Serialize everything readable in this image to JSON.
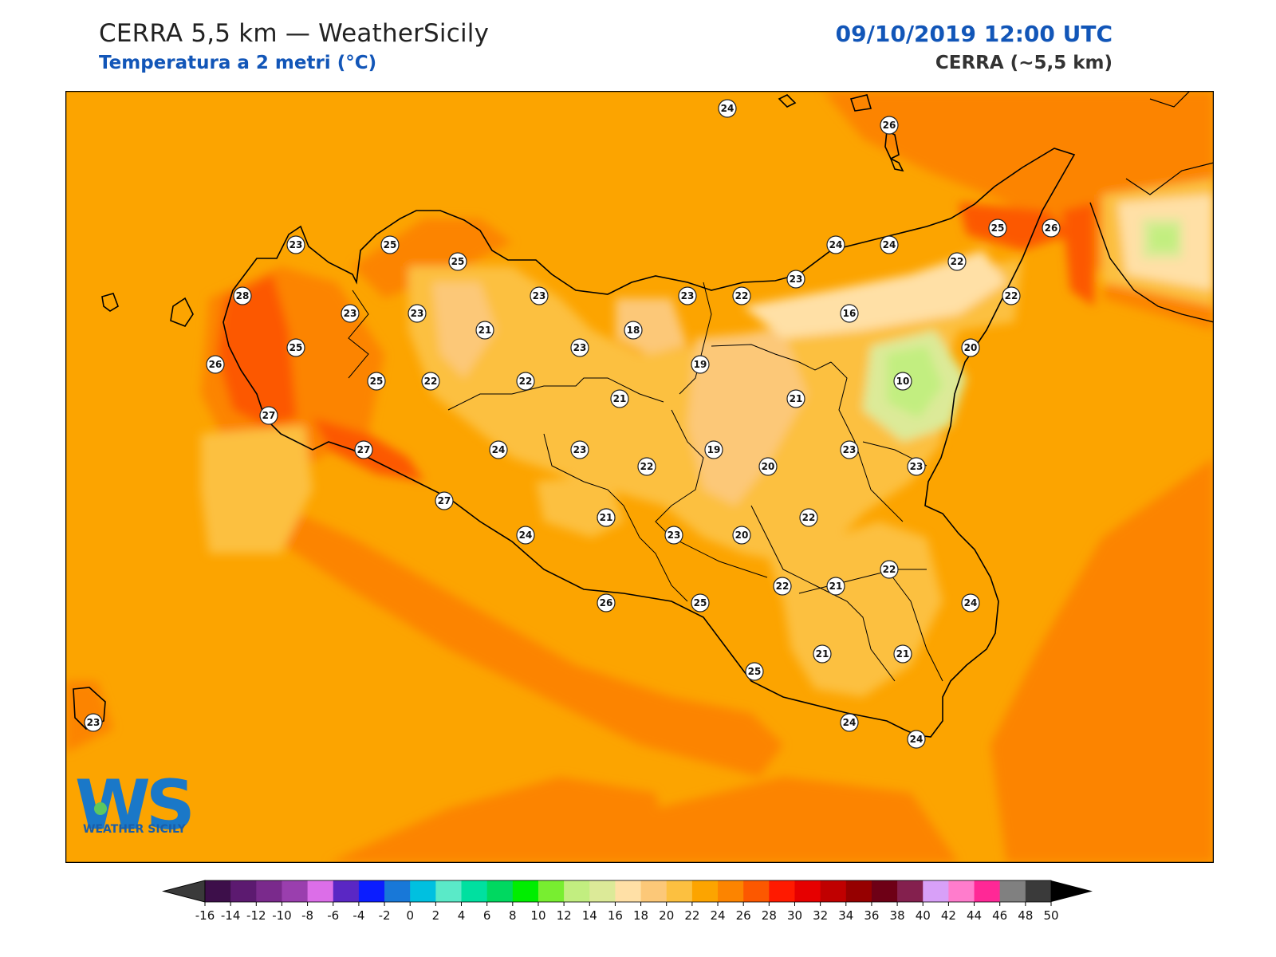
{
  "header": {
    "title": "CERRA 5,5 km — WeatherSicily",
    "subtitle": "Temperatura a 2 metri (°C)",
    "datetime": "09/10/2019 12:00 UTC",
    "model": "CERRA (~5,5 km)"
  },
  "logo": {
    "text": "WEATHER SICILY",
    "icon": "ws-logo-icon"
  },
  "colorbar": {
    "ticks": [
      -16,
      -14,
      -12,
      -10,
      -8,
      -6,
      -4,
      -2,
      0,
      2,
      4,
      6,
      8,
      10,
      12,
      14,
      16,
      18,
      20,
      22,
      24,
      26,
      28,
      30,
      32,
      34,
      36,
      38,
      40,
      42,
      44,
      46,
      48,
      50
    ],
    "colors": [
      "#3d0f4a",
      "#5c1a70",
      "#7a2a8c",
      "#9a3fae",
      "#dc6ee8",
      "#5a27c4",
      "#0b1dff",
      "#1878d8",
      "#00c0e0",
      "#5aeac8",
      "#00e0a0",
      "#00d860",
      "#00ee00",
      "#78ee30",
      "#c2ee80",
      "#dcea98",
      "#ffe0a6",
      "#fcc878",
      "#fcc040",
      "#fca400",
      "#fc8400",
      "#fc5800",
      "#ff1a00",
      "#e60000",
      "#c00000",
      "#960000",
      "#6e0016",
      "#84204e",
      "#d8a0f8",
      "#ff7ccc",
      "#ff2896",
      "#808080",
      "#3a3a3a"
    ],
    "unit": "°C"
  },
  "stations": [
    {
      "v": "24"
    },
    {
      "v": "26"
    },
    {
      "v": "23"
    },
    {
      "v": "25"
    },
    {
      "v": "25"
    },
    {
      "v": "28"
    },
    {
      "v": "23"
    },
    {
      "v": "23"
    },
    {
      "v": "23"
    },
    {
      "v": "21"
    },
    {
      "v": "23"
    },
    {
      "v": "23"
    },
    {
      "v": "22"
    },
    {
      "v": "24"
    },
    {
      "v": "24"
    },
    {
      "v": "23"
    },
    {
      "v": "25"
    },
    {
      "v": "26"
    },
    {
      "v": "22"
    },
    {
      "v": "22"
    },
    {
      "v": "16"
    },
    {
      "v": "18"
    },
    {
      "v": "25"
    },
    {
      "v": "26"
    },
    {
      "v": "25"
    },
    {
      "v": "22"
    },
    {
      "v": "22"
    },
    {
      "v": "21"
    },
    {
      "v": "19"
    },
    {
      "v": "20"
    },
    {
      "v": "10"
    },
    {
      "v": "27"
    },
    {
      "v": "21"
    },
    {
      "v": "21"
    },
    {
      "v": "27"
    },
    {
      "v": "24"
    },
    {
      "v": "23"
    },
    {
      "v": "22"
    },
    {
      "v": "19"
    },
    {
      "v": "20"
    },
    {
      "v": "23"
    },
    {
      "v": "23"
    },
    {
      "v": "27"
    },
    {
      "v": "21"
    },
    {
      "v": "22"
    },
    {
      "v": "24"
    },
    {
      "v": "23"
    },
    {
      "v": "20"
    },
    {
      "v": "22"
    },
    {
      "v": "22"
    },
    {
      "v": "21"
    },
    {
      "v": "26"
    },
    {
      "v": "25"
    },
    {
      "v": "24"
    },
    {
      "v": "25"
    },
    {
      "v": "21"
    },
    {
      "v": "21"
    },
    {
      "v": "24"
    },
    {
      "v": "24"
    },
    {
      "v": "23"
    }
  ]
}
